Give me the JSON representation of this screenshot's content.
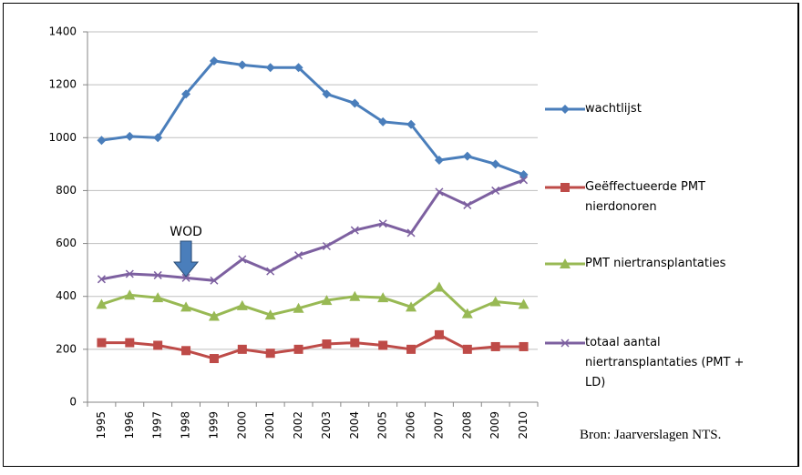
{
  "chart_data": {
    "type": "line",
    "categories": [
      "1995",
      "1996",
      "1997",
      "1998",
      "1999",
      "2000",
      "2001",
      "2002",
      "2003",
      "2004",
      "2005",
      "2006",
      "2007",
      "2008",
      "2009",
      "2010"
    ],
    "series": [
      {
        "name": "wachtlijst",
        "color": "#4a7ebb",
        "marker": "diamond",
        "values": [
          990,
          1005,
          1000,
          1165,
          1290,
          1275,
          1265,
          1265,
          1165,
          1130,
          1060,
          1050,
          915,
          930,
          900,
          860
        ]
      },
      {
        "name": "Geëffectueerde PMT nierdonoren",
        "color": "#be4b48",
        "marker": "square",
        "values": [
          225,
          225,
          215,
          195,
          165,
          200,
          185,
          200,
          220,
          225,
          215,
          200,
          255,
          200,
          210,
          210
        ]
      },
      {
        "name": "PMT niertransplantaties",
        "color": "#98b954",
        "marker": "triangle",
        "values": [
          370,
          405,
          395,
          360,
          325,
          365,
          330,
          355,
          385,
          400,
          395,
          360,
          435,
          335,
          380,
          370
        ]
      },
      {
        "name": "totaal aantal niertransplantaties (PMT + LD)",
        "color": "#7d60a0",
        "marker": "x",
        "values": [
          465,
          485,
          480,
          470,
          460,
          540,
          495,
          555,
          590,
          650,
          675,
          640,
          795,
          745,
          800,
          840
        ]
      }
    ],
    "ylim": [
      0,
      1400
    ],
    "yticks": [
      0,
      200,
      400,
      600,
      800,
      1000,
      1200,
      1400
    ],
    "grid": true,
    "annotations": [
      {
        "text": "WOD",
        "category": "1998"
      }
    ],
    "source": "Bron: Jaarverslagen NTS."
  }
}
